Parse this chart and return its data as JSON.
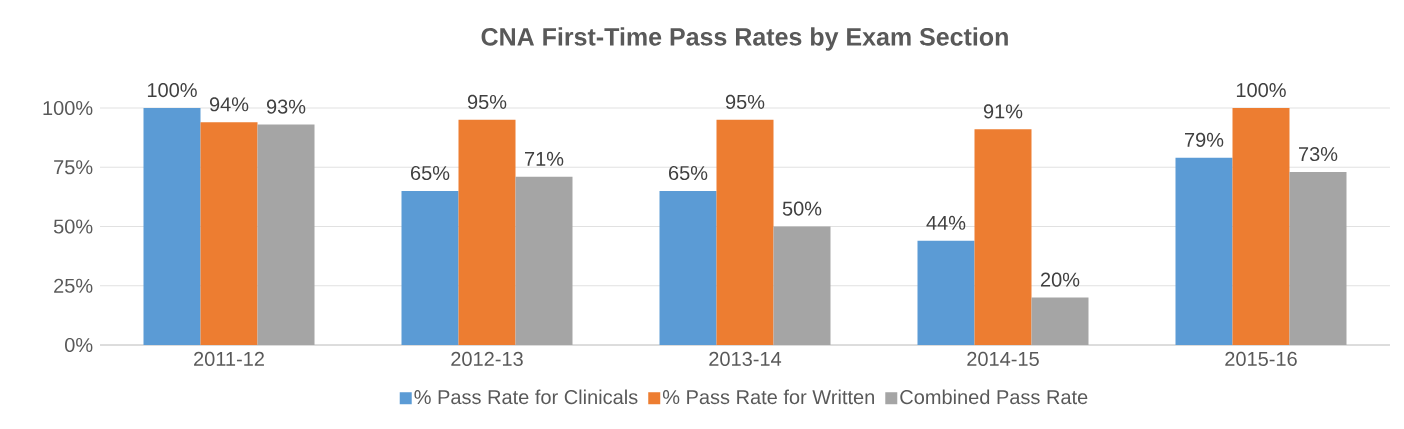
{
  "chart_data": {
    "type": "bar",
    "title": "CNA First-Time Pass Rates by Exam Section",
    "categories": [
      "2011-12",
      "2012-13",
      "2013-14",
      "2014-15",
      "2015-16"
    ],
    "series": [
      {
        "name": "% Pass Rate for Clinicals",
        "color": "#5b9bd5",
        "values": [
          100,
          65,
          65,
          44,
          79
        ],
        "value_labels": [
          "100%",
          "65%",
          "65%",
          "44%",
          "79%"
        ]
      },
      {
        "name": "% Pass Rate for Written",
        "color": "#ed7d31",
        "values": [
          94,
          95,
          95,
          91,
          100
        ],
        "value_labels": [
          "94%",
          "95%",
          "95%",
          "91%",
          "100%"
        ]
      },
      {
        "name": "Combined Pass Rate",
        "color": "#a5a5a5",
        "values": [
          93,
          71,
          50,
          20,
          73
        ],
        "value_labels": [
          "93%",
          "71%",
          "50%",
          "20%",
          "73%"
        ]
      }
    ],
    "ylim": [
      0,
      100
    ],
    "yticks": [
      {
        "value": 0,
        "label": "0%"
      },
      {
        "value": 25,
        "label": "25%"
      },
      {
        "value": 50,
        "label": "50%"
      },
      {
        "value": 75,
        "label": "75%"
      },
      {
        "value": 100,
        "label": "100%"
      }
    ],
    "grid": "y",
    "legend": "bottom"
  }
}
